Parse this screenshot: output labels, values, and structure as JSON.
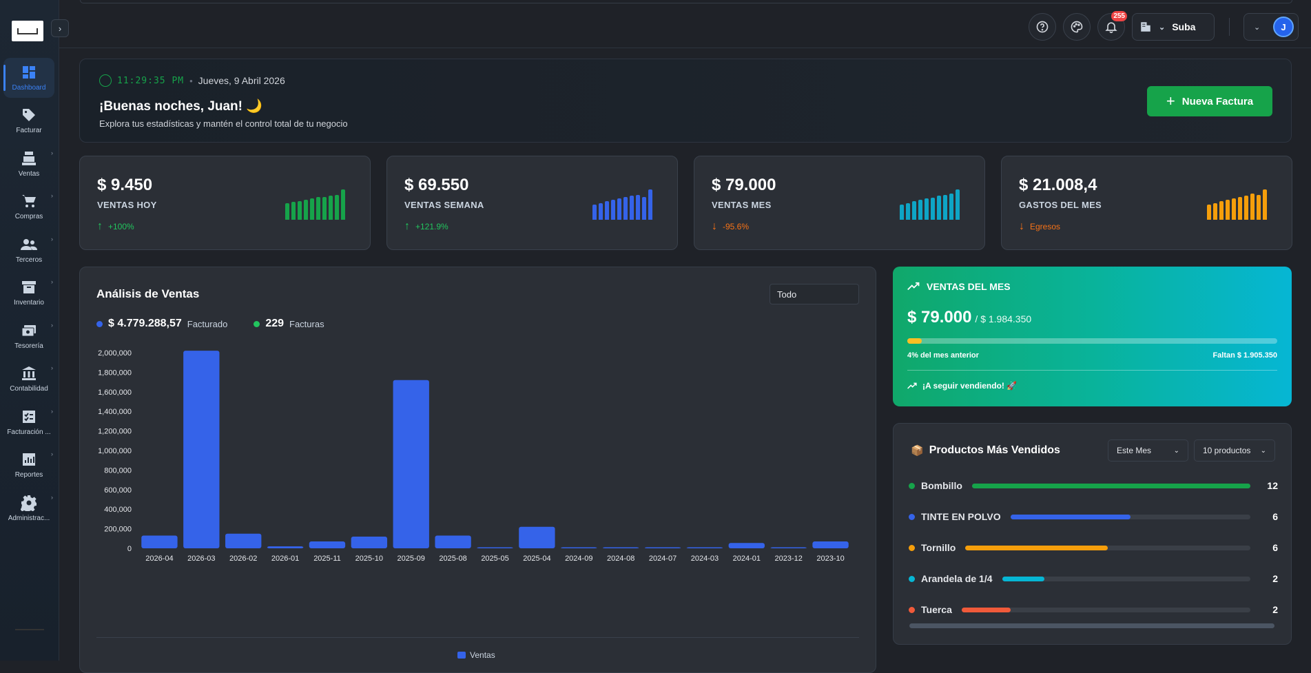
{
  "sidebar": {
    "toggle_icon": "chevron-right-icon",
    "items": [
      {
        "label": "Dashboard",
        "icon": "dashboard-icon",
        "active": true
      },
      {
        "label": "Facturar",
        "icon": "tag-icon"
      },
      {
        "label": "Ventas",
        "icon": "cash-register-icon"
      },
      {
        "label": "Compras",
        "icon": "cart-icon"
      },
      {
        "label": "Terceros",
        "icon": "people-icon"
      },
      {
        "label": "Inventario",
        "icon": "archive-icon"
      },
      {
        "label": "Tesorería",
        "icon": "money-icon"
      },
      {
        "label": "Contabilidad",
        "icon": "bank-icon"
      },
      {
        "label": "Facturación ...",
        "icon": "checklist-icon"
      },
      {
        "label": "Reportes",
        "icon": "chart-icon"
      },
      {
        "label": "Administrac...",
        "icon": "gear-icon"
      }
    ]
  },
  "topbar": {
    "notifications_count": "255",
    "company": "Suba",
    "user_initial": "J"
  },
  "hero": {
    "time": "11:29:35 PM",
    "date": "Jueves, 9 Abril 2026",
    "greeting": "¡Buenas noches, Juan! 🌙",
    "subtitle": "Explora tus estadísticas y mantén el control total de tu negocio",
    "new_invoice_label": "Nueva Factura"
  },
  "stats": [
    {
      "value": "$ 9.450",
      "label": "VENTAS HOY",
      "change": "+100%",
      "direction": "up",
      "color": "#16a34a",
      "change_color": "#22c55e",
      "bars": [
        0.55,
        0.6,
        0.62,
        0.66,
        0.7,
        0.74,
        0.76,
        0.8,
        0.82,
        1.0
      ]
    },
    {
      "value": "$ 69.550",
      "label": "VENTAS SEMANA",
      "change": "+121.9%",
      "direction": "up",
      "color": "#3563e9",
      "change_color": "#22c55e",
      "bars": [
        0.5,
        0.55,
        0.62,
        0.66,
        0.7,
        0.74,
        0.8,
        0.82,
        0.76,
        1.0
      ]
    },
    {
      "value": "$ 79.000",
      "label": "VENTAS MES",
      "change": "-95.6%",
      "direction": "down",
      "color": "#0ea5c6",
      "change_color": "#f97316",
      "bars": [
        0.5,
        0.55,
        0.62,
        0.66,
        0.7,
        0.72,
        0.8,
        0.82,
        0.86,
        1.0
      ]
    },
    {
      "value": "$ 21.008,4",
      "label": "GASTOS DEL MES",
      "change": "Egresos",
      "direction": "down",
      "color": "#f59e0b",
      "change_color": "#f97316",
      "bars": [
        0.5,
        0.55,
        0.62,
        0.66,
        0.7,
        0.76,
        0.8,
        0.86,
        0.82,
        1.0
      ]
    }
  ],
  "analysis": {
    "title": "Análisis de Ventas",
    "period": "Todo",
    "total_amount": "$ 4.779.288,57",
    "total_label": "Facturado",
    "invoices_count": "229",
    "invoices_label": "Facturas",
    "legend_label": "Ventas"
  },
  "chart_data": {
    "type": "bar",
    "categories": [
      "2026-04",
      "2026-03",
      "2026-02",
      "2026-01",
      "2025-11",
      "2025-10",
      "2025-09",
      "2025-08",
      "2025-05",
      "2025-04",
      "2024-09",
      "2024-08",
      "2024-07",
      "2024-03",
      "2024-01",
      "2023-12",
      "2023-10"
    ],
    "series": [
      {
        "name": "Ventas",
        "values": [
          130000,
          2020000,
          150000,
          20000,
          70000,
          120000,
          1720000,
          130000,
          5000,
          220000,
          5000,
          5000,
          5000,
          5000,
          55000,
          5000,
          70000
        ]
      }
    ],
    "yticks": [
      "2,000,000",
      "1,800,000",
      "1,600,000",
      "1,400,000",
      "1,200,000",
      "1,000,000",
      "800,000",
      "600,000",
      "400,000",
      "200,000",
      "0"
    ],
    "ylim": [
      0,
      2000000
    ],
    "color": "#3563e9"
  },
  "goal": {
    "title": "VENTAS DEL MES",
    "amount": "$ 79.000",
    "target": "/ $ 1.984.350",
    "progress": 0.04,
    "progress_text": "4% del mes anterior",
    "remaining": "Faltan $ 1.905.350",
    "message": "¡A seguir vendiendo! 🚀"
  },
  "products": {
    "title": "Productos Más Vendidos",
    "title_icon": "📦",
    "period": "Este Mes",
    "count": "10 productos",
    "items": [
      {
        "name": "Bombillo",
        "value": "12",
        "fraction": 1.0,
        "color": "#16a34a"
      },
      {
        "name": "TINTE EN POLVO",
        "value": "6",
        "fraction": 0.5,
        "color": "#3563e9"
      },
      {
        "name": "Tornillo",
        "value": "6",
        "fraction": 0.5,
        "color": "#f59e0b"
      },
      {
        "name": "Arandela de 1/4",
        "value": "2",
        "fraction": 0.17,
        "color": "#06b6d4"
      },
      {
        "name": "Tuerca",
        "value": "2",
        "fraction": 0.17,
        "color": "#f05a3a"
      }
    ]
  }
}
